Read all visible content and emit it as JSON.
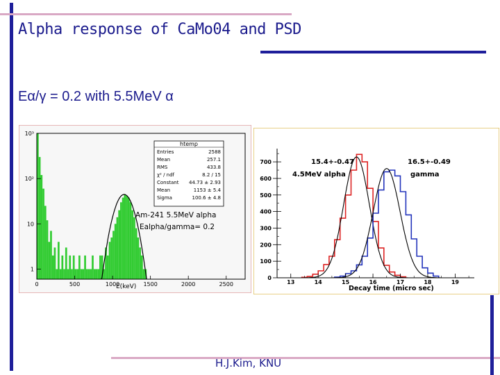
{
  "slide": {
    "title": "Alpha response of CaMo04 and PSD",
    "subtitle": "Eα/γ = 0.2 with 5.5MeV α",
    "footer": "H.J.Kim, KNU",
    "colors": {
      "text": "#1a1a8c",
      "deco_bar": "#1e1e9a",
      "deco_line": "#d9a8c4"
    }
  },
  "chart_data": [
    {
      "type": "histogram",
      "stat_box": {
        "title": "htemp",
        "rows": [
          [
            "Entries",
            "2588"
          ],
          [
            "Mean",
            "257.1"
          ],
          [
            "RMS",
            "433.8"
          ],
          [
            "χ² / ndf",
            "8.2 / 15"
          ],
          [
            "Constant",
            "44.73 ± 2.93"
          ],
          [
            "Mean",
            "1153 ± 5.4"
          ],
          [
            "Sigma",
            "100.6 ± 4.8"
          ]
        ]
      },
      "annotations": [
        "Am-241 5.5MeV alpha",
        "Ealpha/gamma= 0.2"
      ],
      "xlabel": "E(keV)",
      "x_ticks": [
        "0",
        "500",
        "1000",
        "1500",
        "2000",
        "2500"
      ],
      "y_ticks": [
        "1",
        "10",
        "10²",
        "10³"
      ],
      "y_scale": "log",
      "xlim": [
        0,
        2750
      ],
      "ylim": [
        0.6,
        1000
      ],
      "series": [
        {
          "fill": "#33cc33",
          "bins": [
            [
              0,
              1000
            ],
            [
              25,
              300
            ],
            [
              50,
              120
            ],
            [
              75,
              60
            ],
            [
              100,
              25
            ],
            [
              125,
              12
            ],
            [
              150,
              4
            ],
            [
              175,
              7
            ],
            [
              200,
              2
            ],
            [
              225,
              3
            ],
            [
              250,
              1
            ],
            [
              275,
              4
            ],
            [
              300,
              1
            ],
            [
              325,
              2
            ],
            [
              350,
              1
            ],
            [
              375,
              3
            ],
            [
              400,
              1
            ],
            [
              425,
              2
            ],
            [
              450,
              1
            ],
            [
              475,
              2
            ],
            [
              500,
              1
            ],
            [
              525,
              1
            ],
            [
              550,
              2
            ],
            [
              575,
              1
            ],
            [
              600,
              1
            ],
            [
              625,
              2
            ],
            [
              650,
              1
            ],
            [
              675,
              1
            ],
            [
              700,
              1
            ],
            [
              725,
              2
            ],
            [
              750,
              1
            ],
            [
              775,
              1
            ],
            [
              800,
              1
            ],
            [
              825,
              2
            ],
            [
              850,
              2
            ],
            [
              875,
              1
            ],
            [
              900,
              3
            ],
            [
              925,
              2
            ],
            [
              950,
              4
            ],
            [
              975,
              5
            ],
            [
              1000,
              7
            ],
            [
              1025,
              10
            ],
            [
              1050,
              14
            ],
            [
              1075,
              20
            ],
            [
              1100,
              30
            ],
            [
              1125,
              38
            ],
            [
              1150,
              45
            ],
            [
              1175,
              42
            ],
            [
              1200,
              38
            ],
            [
              1225,
              30
            ],
            [
              1250,
              20
            ],
            [
              1275,
              14
            ],
            [
              1300,
              8
            ],
            [
              1325,
              5
            ],
            [
              1350,
              3
            ],
            [
              1375,
              2
            ],
            [
              1400,
              1
            ],
            [
              1425,
              1
            ]
          ],
          "fit": {
            "constant": 44.73,
            "mean": 1153,
            "sigma": 100.6
          }
        }
      ]
    },
    {
      "type": "histogram",
      "xlabel": "Decay time (micro sec)",
      "x_ticks": [
        "13",
        "14",
        "15",
        "16",
        "17",
        "18",
        "19"
      ],
      "y_ticks": [
        "0",
        "100",
        "200",
        "300",
        "400",
        "500",
        "600",
        "700"
      ],
      "xlim": [
        12.5,
        19.7
      ],
      "ylim": [
        0,
        780
      ],
      "annotations": [
        "15.4+-0.47",
        "16.5+-0.49",
        "4.5MeV alpha",
        "gamma"
      ],
      "series": [
        {
          "color": "#dd2222",
          "bins": [
            [
              13.4,
              3
            ],
            [
              13.6,
              8
            ],
            [
              13.8,
              22
            ],
            [
              14.0,
              42
            ],
            [
              14.2,
              80
            ],
            [
              14.4,
              130
            ],
            [
              14.6,
              230
            ],
            [
              14.8,
              360
            ],
            [
              15.0,
              500
            ],
            [
              15.2,
              650
            ],
            [
              15.4,
              745
            ],
            [
              15.6,
              700
            ],
            [
              15.8,
              540
            ],
            [
              16.0,
              340
            ],
            [
              16.2,
              180
            ],
            [
              16.4,
              75
            ],
            [
              16.6,
              35
            ],
            [
              16.8,
              15
            ],
            [
              17.0,
              6
            ]
          ],
          "fit": {
            "constant": 730,
            "mean": 15.4,
            "sigma": 0.47
          }
        },
        {
          "color": "#2233bb",
          "bins": [
            [
              14.6,
              4
            ],
            [
              14.8,
              10
            ],
            [
              15.0,
              25
            ],
            [
              15.2,
              42
            ],
            [
              15.4,
              78
            ],
            [
              15.6,
              130
            ],
            [
              15.8,
              240
            ],
            [
              16.0,
              390
            ],
            [
              16.2,
              530
            ],
            [
              16.4,
              640
            ],
            [
              16.6,
              650
            ],
            [
              16.8,
              615
            ],
            [
              17.0,
              520
            ],
            [
              17.2,
              380
            ],
            [
              17.4,
              235
            ],
            [
              17.6,
              130
            ],
            [
              17.8,
              60
            ],
            [
              18.0,
              28
            ],
            [
              18.2,
              10
            ]
          ],
          "fit": {
            "constant": 660,
            "mean": 16.5,
            "sigma": 0.49
          }
        }
      ]
    }
  ]
}
